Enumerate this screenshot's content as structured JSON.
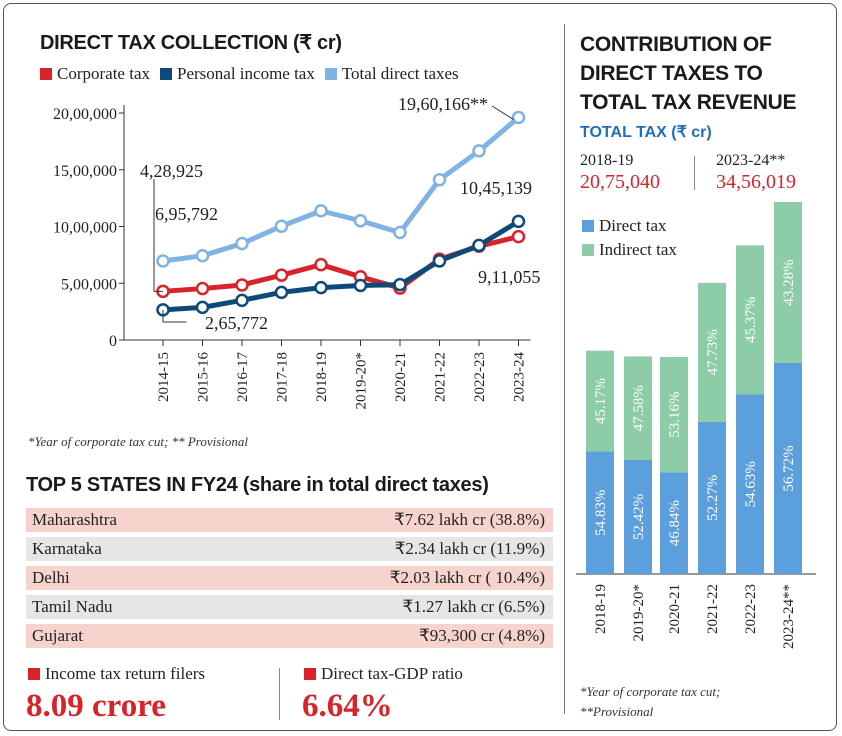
{
  "left_title": "DIRECT TAX COLLECTION (₹ cr)",
  "legend": [
    {
      "label": "Corporate tax",
      "color": "#d8232a"
    },
    {
      "label": "Personal income tax",
      "color": "#0d4a7a"
    },
    {
      "label": "Total direct taxes",
      "color": "#7fb3e3"
    }
  ],
  "chart_data": [
    {
      "type": "line",
      "title": "DIRECT TAX COLLECTION (₹ cr)",
      "categories": [
        "2014-15",
        "2015-16",
        "2016-17",
        "2017-18",
        "2018-19",
        "2019-20*",
        "2020-21",
        "2021-22",
        "2022-23",
        "2023-24"
      ],
      "yticks": [
        "0",
        "5,00,000",
        "10,00,000",
        "15,00,000",
        "20,00,000"
      ],
      "ylim": [
        0,
        2000000
      ],
      "series": [
        {
          "name": "Total direct taxes",
          "color": "#7fb3e3",
          "values": [
            695792,
            741945,
            849713,
            1002738,
            1137718,
            1050681,
            947176,
            1412422,
            1666000,
            1960166
          ]
        },
        {
          "name": "Corporate tax",
          "color": "#d8232a",
          "values": [
            428925,
            453228,
            484924,
            571202,
            663572,
            556876,
            457719,
            712037,
            825834,
            911055
          ]
        },
        {
          "name": "Personal income tax",
          "color": "#0d4a7a",
          "values": [
            265772,
            287637,
            349503,
            419884,
            461676,
            480000,
            487560,
            696604,
            833307,
            1045139
          ]
        }
      ],
      "annotations": [
        "4,28,925",
        "6,95,792",
        "2,65,772",
        "19,60,166**",
        "10,45,139",
        "9,11,055"
      ]
    },
    {
      "type": "bar",
      "title": "CONTRIBUTION OF DIRECT TAXES TO TOTAL TAX REVENUE",
      "categories": [
        "2018-19",
        "2019-20*",
        "2020-21",
        "2021-22",
        "2022-23",
        "2023-24**"
      ],
      "series": [
        {
          "name": "Direct tax",
          "color": "#5b9fdc",
          "values": [
            54.83,
            52.42,
            46.84,
            52.27,
            54.63,
            56.72
          ],
          "labels": [
            "54.83%",
            "52.42%",
            "46.84%",
            "52.27%",
            "54.63%",
            "56.72%"
          ]
        },
        {
          "name": "Indirect tax",
          "color": "#8ccda7",
          "values": [
            45.17,
            47.58,
            53.16,
            47.73,
            45.37,
            43.28
          ],
          "labels": [
            "45.17%",
            "47.58%",
            "53.16%",
            "47.73%",
            "45.37%",
            "43.28%"
          ]
        }
      ],
      "totals": [
        2075040,
        2021000,
        2016000,
        2705000,
        3053000,
        3456019
      ]
    }
  ],
  "left_note": "*Year of corporate tax cut; ** Provisional",
  "states_title": "TOP 5 STATES IN FY24 (share in total direct taxes)",
  "states": [
    {
      "name": "Maharashtra",
      "value": "₹7.62 lakh cr (38.8%)"
    },
    {
      "name": "Karnataka",
      "value": "₹2.34 lakh cr (11.9%)"
    },
    {
      "name": "Delhi",
      "value": "₹2.03 lakh cr ( 10.4%)"
    },
    {
      "name": "Tamil Nadu",
      "value": "₹1.27 lakh cr  (6.5%)"
    },
    {
      "name": "Gujarat",
      "value": "₹93,300 cr  (4.8%)"
    }
  ],
  "metrics": [
    {
      "label": "Income tax return filers",
      "value": "8.09 crore"
    },
    {
      "label": "Direct tax-GDP ratio",
      "value": "6.64%"
    }
  ],
  "right_title_lines": [
    "CONTRIBUTION OF",
    "DIRECT TAXES TO",
    "TOTAL TAX REVENUE"
  ],
  "total_tax_label": "TOTAL TAX (₹ cr)",
  "totals_header": [
    {
      "year": "2018-19",
      "value": "20,75,040"
    },
    {
      "year": "2023-24**",
      "value": "34,56,019"
    }
  ],
  "right_legend": [
    "Direct tax",
    "Indirect tax"
  ],
  "right_note_lines": [
    "*Year of corporate tax cut;",
    "**Provisional"
  ],
  "colors": {
    "accent_red": "#d8232a",
    "title_blue": "#1e6fb8",
    "direct": "#5b9fdc",
    "indirect": "#8ccda7"
  }
}
